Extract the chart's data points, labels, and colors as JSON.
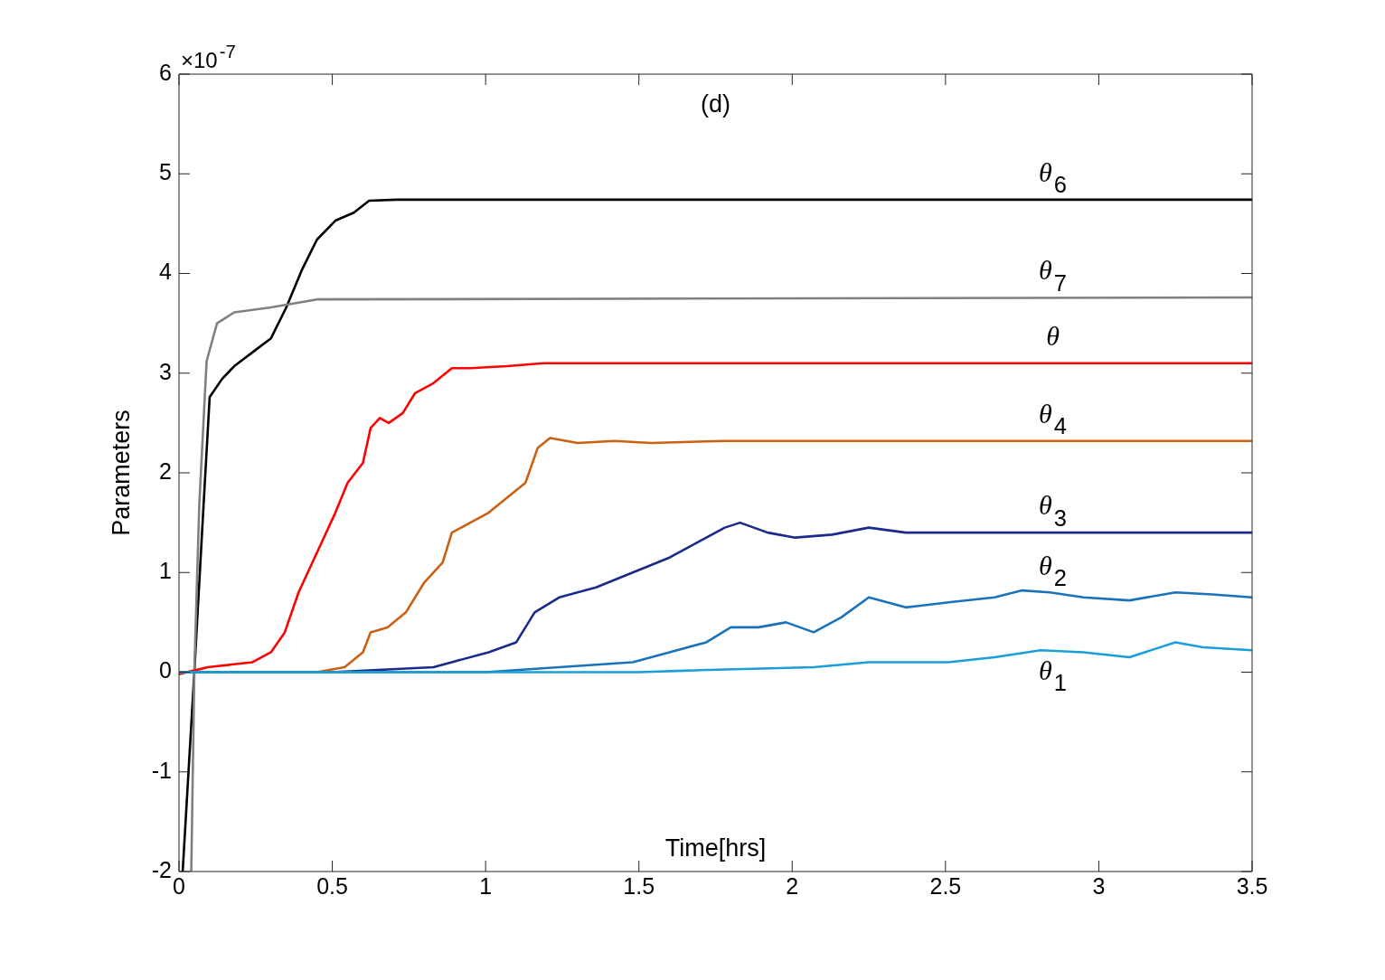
{
  "chart_data": {
    "type": "line",
    "title": "(d)",
    "xlabel": "Time[hrs]",
    "ylabel": "Parameters",
    "xlim": [
      0,
      3.5
    ],
    "xticks": [
      0,
      0.5,
      1,
      1.5,
      2,
      2.5,
      3,
      3.5
    ],
    "ylim": [
      -2,
      6
    ],
    "yticks": [
      -2,
      -1,
      0,
      1,
      2,
      3,
      4,
      5,
      6
    ],
    "grid": false,
    "legend": false,
    "marker": "none",
    "line_style": "solid",
    "annotations": [
      "×10$^{-7}$"
    ],
    "series": [
      {
        "name": "θ$_{1}$",
        "color": "#1a9fd6",
        "x": [
          0,
          0.5,
          1,
          1.5,
          1.7,
          2.07,
          2.25,
          2.51,
          2.66,
          2.81,
          2.95,
          3.1,
          3.25,
          3.34,
          3.5
        ],
        "values": [
          0,
          0,
          0,
          0,
          0.02,
          0.05,
          0.1,
          0.1,
          0.15,
          0.22,
          0.2,
          0.15,
          0.3,
          0.25,
          0.22
        ]
      },
      {
        "name": "θ$_{2}$",
        "color": "#1a72bb",
        "x": [
          0,
          0.5,
          1,
          1.24,
          1.48,
          1.6,
          1.72,
          1.8,
          1.89,
          1.98,
          2.07,
          2.16,
          2.25,
          2.37,
          2.51,
          2.66,
          2.75,
          2.84,
          2.95,
          3.1,
          3.25,
          3.37,
          3.5
        ],
        "values": [
          0,
          0,
          0,
          0.05,
          0.1,
          0.2,
          0.3,
          0.45,
          0.45,
          0.5,
          0.4,
          0.55,
          0.75,
          0.65,
          0.7,
          0.75,
          0.82,
          0.8,
          0.75,
          0.72,
          0.8,
          0.78,
          0.75
        ]
      },
      {
        "name": "θ$_{3}$",
        "color": "#1a2a8a",
        "x": [
          0,
          0.5,
          0.83,
          0.89,
          1.01,
          1.1,
          1.16,
          1.24,
          1.36,
          1.48,
          1.6,
          1.69,
          1.78,
          1.83,
          1.92,
          2.01,
          2.13,
          2.25,
          2.37,
          2.66,
          3.5
        ],
        "values": [
          0,
          0,
          0.05,
          0.1,
          0.2,
          0.3,
          0.6,
          0.75,
          0.85,
          1.0,
          1.15,
          1.3,
          1.45,
          1.5,
          1.4,
          1.35,
          1.38,
          1.45,
          1.4,
          1.4,
          1.4
        ]
      },
      {
        "name": "θ$_{4}$",
        "color": "#cc6010",
        "x": [
          0,
          0.45,
          0.54,
          0.6,
          0.625,
          0.68,
          0.74,
          0.8,
          0.86,
          0.89,
          0.95,
          1.01,
          1.07,
          1.13,
          1.17,
          1.21,
          1.3,
          1.42,
          1.54,
          1.78,
          3.5
        ],
        "values": [
          0,
          0,
          0.05,
          0.2,
          0.4,
          0.45,
          0.6,
          0.9,
          1.1,
          1.4,
          1.5,
          1.6,
          1.75,
          1.9,
          2.25,
          2.35,
          2.3,
          2.32,
          2.3,
          2.32,
          2.32
        ]
      },
      {
        "name": "θ",
        "color": "#ff0000",
        "x": [
          0,
          0.094,
          0.24,
          0.3,
          0.345,
          0.39,
          0.45,
          0.51,
          0.55,
          0.6,
          0.625,
          0.655,
          0.684,
          0.73,
          0.77,
          0.83,
          0.89,
          0.95,
          1.07,
          1.19,
          3.5
        ],
        "values": [
          -0.02,
          0.05,
          0.1,
          0.2,
          0.4,
          0.8,
          1.2,
          1.6,
          1.9,
          2.1,
          2.45,
          2.55,
          2.5,
          2.6,
          2.8,
          2.9,
          3.05,
          3.05,
          3.07,
          3.1,
          3.1
        ]
      },
      {
        "name": "θ$_{7}$",
        "color": "#808080",
        "x": [
          0.04,
          0.05,
          0.066,
          0.09,
          0.124,
          0.18,
          0.3,
          0.45,
          3.5
        ],
        "values": [
          -2,
          0,
          1.67,
          3.12,
          3.5,
          3.61,
          3.66,
          3.74,
          3.76
        ]
      },
      {
        "name": "θ$_{6}$",
        "color": "#000000",
        "x": [
          0.012,
          0.05,
          0.08,
          0.1,
          0.14,
          0.18,
          0.24,
          0.3,
          0.35,
          0.4,
          0.45,
          0.51,
          0.57,
          0.62,
          0.71,
          3.5
        ],
        "values": [
          -2,
          0,
          1.67,
          2.76,
          2.94,
          3.07,
          3.21,
          3.35,
          3.66,
          4.03,
          4.34,
          4.53,
          4.61,
          4.73,
          4.74,
          4.74
        ]
      }
    ]
  }
}
